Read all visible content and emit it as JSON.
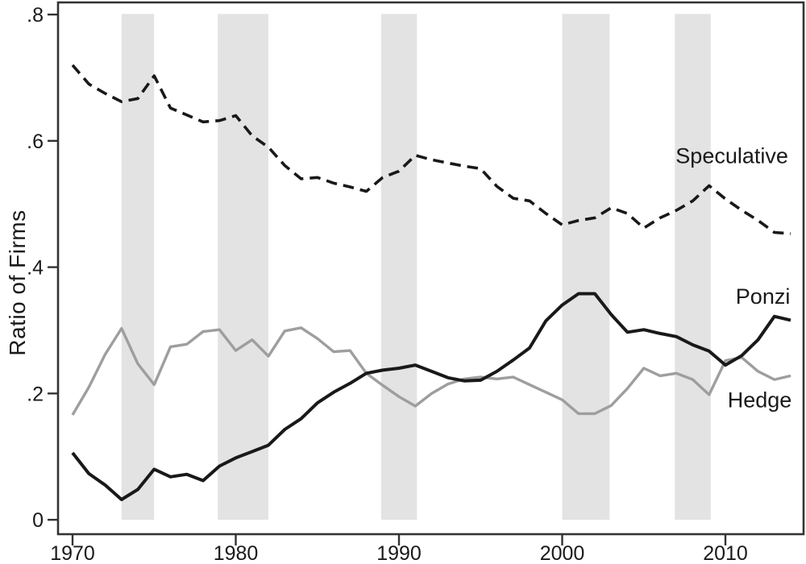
{
  "figure": {
    "background": "#ffffff",
    "text_color": "#1a1a1a",
    "frame_color": "#333333"
  },
  "chart_data": {
    "type": "line",
    "title": "",
    "xlabel": "",
    "ylabel": "Ratio of Firms",
    "xlim": [
      1969.111,
      2014.79
    ],
    "ylim": [
      -0.0228,
      0.8192
    ],
    "grid": false,
    "legend_position": "inline-right-labels",
    "x_ticks": [
      1970,
      1980,
      1990,
      2000,
      2010
    ],
    "x_tick_labels": [
      "1970",
      "1980",
      "1990",
      "2000",
      "2010"
    ],
    "y_ticks": [
      0,
      0.2,
      0.4,
      0.6,
      0.8
    ],
    "y_tick_labels": [
      "0",
      ".2",
      ".4",
      ".6",
      ".8"
    ],
    "band_color": "#e3e3e3",
    "band_value_range": [
      0,
      0.801
    ],
    "recession_bands": [
      [
        1973.0,
        1975.0
      ],
      [
        1978.9,
        1982.0
      ],
      [
        1988.9,
        1991.1
      ],
      [
        2000.0,
        2002.9
      ],
      [
        2006.9,
        2009.1
      ]
    ],
    "x": [
      1970,
      1971,
      1972,
      1973,
      1974,
      1975,
      1976,
      1977,
      1978,
      1979,
      1980,
      1981,
      1982,
      1983,
      1984,
      1985,
      1986,
      1987,
      1988,
      1989,
      1990,
      1991,
      1992,
      1993,
      1994,
      1995,
      1996,
      1997,
      1998,
      1999,
      2000,
      2001,
      2002,
      2003,
      2004,
      2005,
      2006,
      2007,
      2008,
      2009,
      2010,
      2011,
      2012,
      2013,
      2014
    ],
    "series": [
      {
        "name": "Speculative",
        "style": "dashed",
        "color": "#191919",
        "width": 3.6,
        "z": 1,
        "values": [
          0.72,
          0.69,
          0.675,
          0.662,
          0.667,
          0.703,
          0.652,
          0.641,
          0.63,
          0.632,
          0.64,
          0.608,
          0.59,
          0.561,
          0.54,
          0.542,
          0.533,
          0.527,
          0.52,
          0.542,
          0.552,
          0.577,
          0.57,
          0.565,
          0.56,
          0.556,
          0.528,
          0.509,
          0.505,
          0.485,
          0.467,
          0.474,
          0.478,
          0.494,
          0.485,
          0.462,
          0.478,
          0.49,
          0.505,
          0.529,
          0.508,
          0.49,
          0.474,
          0.455,
          0.453
        ]
      },
      {
        "name": "Ponzi",
        "style": "solid",
        "color": "#191919",
        "width": 4,
        "z": 2,
        "values": [
          0.106,
          0.073,
          0.055,
          0.032,
          0.048,
          0.08,
          0.068,
          0.072,
          0.062,
          0.085,
          0.098,
          0.108,
          0.118,
          0.143,
          0.16,
          0.185,
          0.202,
          0.216,
          0.232,
          0.237,
          0.24,
          0.245,
          0.235,
          0.225,
          0.22,
          0.221,
          0.235,
          0.253,
          0.272,
          0.315,
          0.34,
          0.358,
          0.358,
          0.325,
          0.297,
          0.301,
          0.295,
          0.29,
          0.277,
          0.267,
          0.245,
          0.26,
          0.285,
          0.322,
          0.316
        ]
      },
      {
        "name": "Hedge",
        "style": "solid",
        "color": "#9e9e9e",
        "width": 3.4,
        "z": 0,
        "values": [
          0.166,
          0.21,
          0.262,
          0.303,
          0.247,
          0.214,
          0.274,
          0.278,
          0.298,
          0.301,
          0.268,
          0.285,
          0.259,
          0.299,
          0.304,
          0.287,
          0.266,
          0.268,
          0.232,
          0.213,
          0.195,
          0.18,
          0.2,
          0.215,
          0.223,
          0.226,
          0.223,
          0.226,
          0.214,
          0.202,
          0.19,
          0.168,
          0.168,
          0.181,
          0.208,
          0.24,
          0.228,
          0.232,
          0.222,
          0.198,
          0.252,
          0.257,
          0.235,
          0.222,
          0.228
        ]
      }
    ],
    "annotations": [
      {
        "text": "Speculative",
        "x": 2010.4,
        "y": 0.565
      },
      {
        "text": "Ponzi",
        "x": 2012.3,
        "y": 0.342
      },
      {
        "text": "Hedge",
        "x": 2012.1,
        "y": 0.178
      }
    ]
  }
}
